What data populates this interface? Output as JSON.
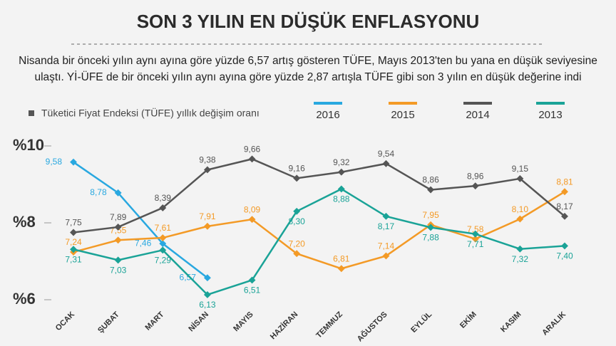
{
  "chart_data": {
    "type": "line",
    "title": "SON 3 YILIN EN DÜŞÜK ENFLASYONU",
    "subtitle": [
      "Nisanda bir önceki yılın aynı ayına göre yüzde 6,57 artış gösteren TÜFE, Mayıs 2013'ten bu yana en düşük seviyesine",
      "ulaştı. Yİ-ÜFE de bir önceki yılın aynı ayına göre yüzde 2,87 artışla TÜFE gibi son 3 yılın en düşük değerine indi"
    ],
    "legend_title": "Tüketici Fiyat Endeksi (TÜFE) yıllık değişim oranı",
    "categories": [
      "OCAK",
      "ŞUBAT",
      "MART",
      "NİSAN",
      "MAYIS",
      "HAZİRAN",
      "TEMMUZ",
      "AĞUSTOS",
      "EYLÜL",
      "EKİM",
      "KASIM",
      "ARALIK"
    ],
    "ylim": [
      6,
      10
    ],
    "yticks": [
      {
        "value": 6,
        "label": "%6"
      },
      {
        "value": 8,
        "label": "%8"
      },
      {
        "value": 10,
        "label": "%10"
      }
    ],
    "series": [
      {
        "name": "2016",
        "color": "#29a8e0",
        "values": [
          9.58,
          8.78,
          7.46,
          6.57,
          null,
          null,
          null,
          null,
          null,
          null,
          null,
          null
        ],
        "value_labels": [
          "9,58",
          "8,78",
          "7,46",
          "6,57",
          null,
          null,
          null,
          null,
          null,
          null,
          null,
          null
        ]
      },
      {
        "name": "2015",
        "color": "#f39a26",
        "values": [
          7.24,
          7.55,
          7.61,
          7.91,
          8.09,
          7.2,
          6.81,
          7.14,
          7.95,
          7.58,
          8.1,
          8.81
        ],
        "value_labels": [
          "7,24",
          "7,55",
          "7,61",
          "7,91",
          "8,09",
          "7,20",
          "6,81",
          "7,14",
          "7,95",
          "7,58",
          "8,10",
          "8,81"
        ]
      },
      {
        "name": "2014",
        "color": "#555555",
        "values": [
          7.75,
          7.89,
          8.39,
          9.38,
          9.66,
          9.16,
          9.32,
          9.54,
          8.86,
          8.96,
          9.15,
          8.17
        ],
        "value_labels": [
          "7,75",
          "7,89",
          "8,39",
          "9,38",
          "9,66",
          "9,16",
          "9,32",
          "9,54",
          "8,86",
          "8,96",
          "9,15",
          "8,17"
        ]
      },
      {
        "name": "2013",
        "color": "#1aa397",
        "values": [
          7.31,
          7.03,
          7.29,
          6.13,
          6.51,
          8.3,
          8.88,
          8.17,
          7.88,
          7.71,
          7.32,
          7.4
        ],
        "value_labels": [
          "7,31",
          "7,03",
          "7,29",
          "6,13",
          "6,51",
          "8,30",
          "8,88",
          "8,17",
          "7,88",
          "7,71",
          "7,32",
          "7,40"
        ]
      }
    ]
  }
}
